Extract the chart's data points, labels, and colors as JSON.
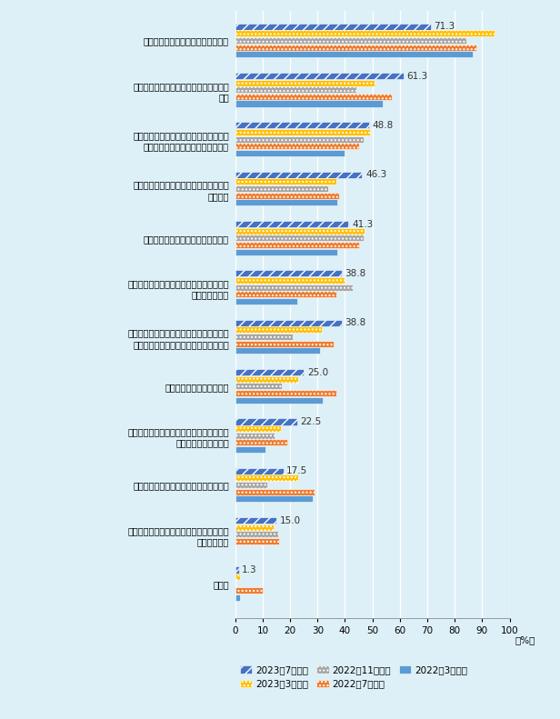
{
  "categories": [
    "日本との定期航空便のさらなる拡充",
    "人件費上昇に対する支援（減税、補助金\n等）",
    "外国人の中国駐在にかかる就労許可、査\n証・居留証取得にかかる柔軟な対応",
    "法規執行の安定性・透明性・利便性の維\n持・確保",
    "日本国総領事館の設立にかかる支持",
    "工場運営、生活維持のための電力等エネル\nギーの安定供給",
    "工場のグリーン化、スマート化に伴う湖北\n省の助成政策（補助金等）の説明会開催",
    "現地職員確保に対する支援",
    "武漢新港（陽羅港）の取扱い貨物の範囲拡\n大（電池、化学品等）",
    "夏季集中豪雨に伴う浸水被害防止の徹底",
    "鄂州花湖空港（アジア最大の貨物空港）の\n早期利用開始",
    "その他"
  ],
  "labels_right": [
    "71.3",
    "61.3",
    "48.8",
    "46.3",
    "41.3",
    "38.8",
    "38.8",
    "25.0",
    "22.5",
    "17.5",
    "15.0",
    "1.3"
  ],
  "series_order": [
    "2023年7月調査",
    "2023年3月調査",
    "2022年11月調査",
    "2022年7月調査",
    "2022年3月調査"
  ],
  "series": {
    "2023年7月調査": [
      71.3,
      61.3,
      48.8,
      46.3,
      41.3,
      38.8,
      38.8,
      25.0,
      22.5,
      17.5,
      15.0,
      1.3
    ],
    "2023年3月調査": [
      94.4,
      50.9,
      49.1,
      37.0,
      47.2,
      39.8,
      31.5,
      23.1,
      16.7,
      23.1,
      13.9,
      1.9
    ],
    "2022年11月調査": [
      84.4,
      44.2,
      46.8,
      33.8,
      46.8,
      42.9,
      20.8,
      16.9,
      14.3,
      11.7,
      15.6,
      0.0
    ],
    "2022年7月調査": [
      88.0,
      57.0,
      45.0,
      38.0,
      45.0,
      37.0,
      36.0,
      37.0,
      19.0,
      29.0,
      16.0,
      10.0
    ],
    "2022年3月調査": [
      86.4,
      53.6,
      40.0,
      37.3,
      37.3,
      22.7,
      30.9,
      31.8,
      10.9,
      28.2,
      0.0,
      1.8
    ]
  },
  "colors": {
    "2023年7月調査": "#4472C4",
    "2023年3月調査": "#FFC000",
    "2022年11月調査": "#A5A5A5",
    "2022年7月調査": "#ED7D31",
    "2022年3月調査": "#5B9BD5"
  },
  "hatches": {
    "2023年7月調査": "///",
    "2023年3月調査": "....",
    "2022年11月調査": "....",
    "2022年7月調査": "....",
    "2022年3月調査": ""
  },
  "bg_color": "#DDF0F7",
  "xlim": [
    0,
    100
  ],
  "xticks": [
    0,
    10,
    20,
    30,
    40,
    50,
    60,
    70,
    80,
    90,
    100
  ]
}
